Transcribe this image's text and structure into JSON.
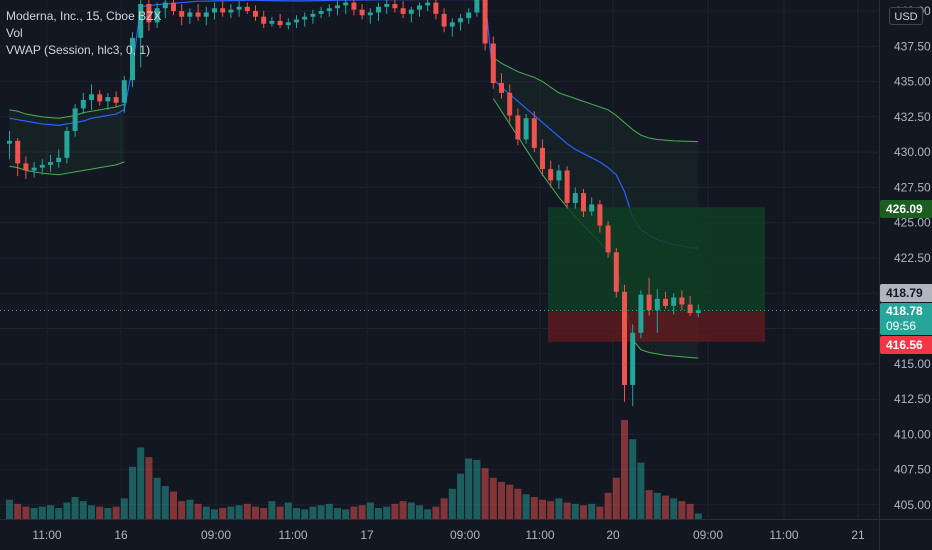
{
  "legend": {
    "title": "Moderna, Inc., 15, Cboe BZX",
    "volume": "Vol",
    "vwap": "VWAP (Session, hlc3, 0, 1)"
  },
  "currency_button": "USD",
  "price_tags": {
    "target": "426.09",
    "last": "418.79",
    "current": "418.78",
    "countdown": "09:56",
    "stop": "416.56"
  },
  "colors": {
    "background": "#131722",
    "up": "#26a69a",
    "down": "#ef5350",
    "vwap": "#2962ff",
    "band": "#4caf50",
    "target_zone": "#0f3d24",
    "stop_zone": "#5c1a1f"
  },
  "chart_data": {
    "type": "candlestick",
    "y_ticks": [
      "405.00",
      "407.50",
      "410.00",
      "412.50",
      "415.00",
      "417.50",
      "420.00",
      "422.50",
      "425.00",
      "427.50",
      "430.00",
      "432.50",
      "435.00",
      "437.50",
      "440.00"
    ],
    "ylim": [
      404,
      440.5
    ],
    "x_ticks": [
      "11:00",
      "16",
      "09:00",
      "11:00",
      "17",
      "09:00",
      "11:00",
      "20",
      "09:00",
      "11:00",
      "21"
    ],
    "candles": [
      [
        430.6,
        431.5,
        429.5,
        430.8
      ],
      [
        430.8,
        431.0,
        428.3,
        429.2
      ],
      [
        429.2,
        429.7,
        428.1,
        428.7
      ],
      [
        428.7,
        429.3,
        428.2,
        428.9
      ],
      [
        428.9,
        429.5,
        428.4,
        429.1
      ],
      [
        429.1,
        429.8,
        428.6,
        429.3
      ],
      [
        429.3,
        430.2,
        428.9,
        429.6
      ],
      [
        429.6,
        431.8,
        429.2,
        431.5
      ],
      [
        431.5,
        433.4,
        431.1,
        433.1
      ],
      [
        433.1,
        434.2,
        432.7,
        433.7
      ],
      [
        433.7,
        434.8,
        433.0,
        434.1
      ],
      [
        434.1,
        434.4,
        433.3,
        433.6
      ],
      [
        433.6,
        434.2,
        433.0,
        433.9
      ],
      [
        433.9,
        434.3,
        433.2,
        433.5
      ],
      [
        433.5,
        435.4,
        432.8,
        435.1
      ],
      [
        435.1,
        438.5,
        434.6,
        438.1
      ],
      [
        438.1,
        441.2,
        436.0,
        440.5
      ],
      [
        440.5,
        441.0,
        438.6,
        439.2
      ],
      [
        439.2,
        440.6,
        438.8,
        440.2
      ],
      [
        440.2,
        441.0,
        439.5,
        440.6
      ],
      [
        440.6,
        441.0,
        439.7,
        440.0
      ],
      [
        440.0,
        440.5,
        439.0,
        439.6
      ],
      [
        439.6,
        440.2,
        439.1,
        439.9
      ],
      [
        439.9,
        440.5,
        439.3,
        439.6
      ],
      [
        439.6,
        440.3,
        439.0,
        439.9
      ],
      [
        439.9,
        440.6,
        439.4,
        440.2
      ],
      [
        440.2,
        440.7,
        439.6,
        439.9
      ],
      [
        439.9,
        440.5,
        439.5,
        440.1
      ],
      [
        440.1,
        440.7,
        439.6,
        440.3
      ],
      [
        440.3,
        440.6,
        439.8,
        440.0
      ],
      [
        440.0,
        440.4,
        439.3,
        439.6
      ],
      [
        439.6,
        440.0,
        438.8,
        439.1
      ],
      [
        439.1,
        439.6,
        438.9,
        439.3
      ],
      [
        439.3,
        439.8,
        438.8,
        439.0
      ],
      [
        439.0,
        439.5,
        438.7,
        439.2
      ],
      [
        439.2,
        439.7,
        438.8,
        439.4
      ],
      [
        439.4,
        439.9,
        438.9,
        439.6
      ],
      [
        439.6,
        440.1,
        439.1,
        439.8
      ],
      [
        439.8,
        440.3,
        439.5,
        440.0
      ],
      [
        440.0,
        440.5,
        439.6,
        440.2
      ],
      [
        440.2,
        440.7,
        439.7,
        440.4
      ],
      [
        440.4,
        440.8,
        439.8,
        440.6
      ],
      [
        440.6,
        441.0,
        439.7,
        440.1
      ],
      [
        440.1,
        440.5,
        439.4,
        439.7
      ],
      [
        439.7,
        440.2,
        439.1,
        439.9
      ],
      [
        439.9,
        440.6,
        439.3,
        440.3
      ],
      [
        440.3,
        440.9,
        439.8,
        440.5
      ],
      [
        440.5,
        441.0,
        439.9,
        440.2
      ],
      [
        440.2,
        440.7,
        439.5,
        439.8
      ],
      [
        439.8,
        440.3,
        439.2,
        440.1
      ],
      [
        440.1,
        440.6,
        439.6,
        440.4
      ],
      [
        440.4,
        441.0,
        440.0,
        440.6
      ],
      [
        440.6,
        441.0,
        439.4,
        439.8
      ],
      [
        439.8,
        440.2,
        438.5,
        438.9
      ],
      [
        438.9,
        439.5,
        438.2,
        439.2
      ],
      [
        439.2,
        439.8,
        438.6,
        439.5
      ],
      [
        439.5,
        440.2,
        439.1,
        439.9
      ],
      [
        439.9,
        441.2,
        439.6,
        440.8
      ],
      [
        440.8,
        441.0,
        437.2,
        437.7
      ],
      [
        437.7,
        438.2,
        434.5,
        434.9
      ],
      [
        434.9,
        435.6,
        433.8,
        434.2
      ],
      [
        434.2,
        434.8,
        432.1,
        432.6
      ],
      [
        432.6,
        433.1,
        430.5,
        430.9
      ],
      [
        430.9,
        432.7,
        430.6,
        432.4
      ],
      [
        432.4,
        432.9,
        430.0,
        430.3
      ],
      [
        430.3,
        430.9,
        428.3,
        428.8
      ],
      [
        428.8,
        429.4,
        427.5,
        428.0
      ],
      [
        428.0,
        429.1,
        427.4,
        428.7
      ],
      [
        428.7,
        429.0,
        426.0,
        426.4
      ],
      [
        426.4,
        427.5,
        426.0,
        427.1
      ],
      [
        427.1,
        427.4,
        425.4,
        425.8
      ],
      [
        425.8,
        426.8,
        425.5,
        426.3
      ],
      [
        426.3,
        426.6,
        424.3,
        424.8
      ],
      [
        424.8,
        425.1,
        422.5,
        422.9
      ],
      [
        422.9,
        423.2,
        419.7,
        420.1
      ],
      [
        420.1,
        420.6,
        412.3,
        413.5
      ],
      [
        413.5,
        417.8,
        412.0,
        417.2
      ],
      [
        417.2,
        420.2,
        416.8,
        419.9
      ],
      [
        419.9,
        421.1,
        418.4,
        418.8
      ],
      [
        418.8,
        420.3,
        417.2,
        419.6
      ],
      [
        419.6,
        420.1,
        418.9,
        419.1
      ],
      [
        419.1,
        420.0,
        418.5,
        419.7
      ],
      [
        419.7,
        420.2,
        418.8,
        419.2
      ],
      [
        419.2,
        419.8,
        418.4,
        418.6
      ],
      [
        418.6,
        419.2,
        418.3,
        418.79
      ]
    ],
    "volumes": [
      14,
      11,
      9,
      8,
      9,
      10,
      8,
      12,
      16,
      13,
      10,
      9,
      8,
      9,
      15,
      38,
      52,
      45,
      30,
      24,
      20,
      13,
      14,
      11,
      9,
      7,
      8,
      9,
      10,
      11,
      9,
      8,
      13,
      9,
      12,
      8,
      7,
      9,
      10,
      11,
      8,
      7,
      9,
      10,
      12,
      8,
      9,
      11,
      13,
      12,
      10,
      7,
      9,
      15,
      22,
      33,
      44,
      43,
      37,
      30,
      27,
      25,
      22,
      18,
      16,
      14,
      13,
      15,
      12,
      11,
      10,
      11,
      9,
      19,
      30,
      72,
      58,
      41,
      21,
      19,
      17,
      15,
      13,
      11,
      4
    ],
    "vwap": [
      432.4,
      432.3,
      432.2,
      432.1,
      432.0,
      431.95,
      431.9,
      432.0,
      432.1,
      432.2,
      432.4,
      432.5,
      432.6,
      432.7,
      433.0,
      436.0,
      440.3,
      440.4,
      440.45,
      440.5,
      440.55,
      440.6,
      440.65,
      440.7,
      440.7,
      440.72,
      440.73,
      440.74,
      440.75,
      440.76,
      440.76,
      440.75,
      440.74,
      440.73,
      440.72,
      440.72,
      440.72,
      440.73,
      440.74,
      440.75,
      440.76,
      440.77,
      440.78,
      440.78,
      440.79,
      440.8,
      440.8,
      440.81,
      440.81,
      440.81,
      440.82,
      440.82,
      440.82,
      440.82,
      440.82,
      440.82,
      440.82,
      440.82,
      440.82,
      435.2,
      434.6,
      434.1,
      433.6,
      433.1,
      432.6,
      432.1,
      431.6,
      431.1,
      430.6,
      430.2,
      429.9,
      429.6,
      429.3,
      428.9,
      428.4,
      427.2,
      425.4,
      424.5,
      424.1,
      423.8,
      423.6,
      423.45,
      423.35,
      423.25,
      423.2
    ],
    "vwap_upper": [
      null,
      null,
      null,
      null,
      null,
      null,
      null,
      null,
      null,
      null,
      null,
      null,
      null,
      null,
      null,
      null,
      null,
      null,
      null,
      null,
      null,
      null,
      null,
      null,
      null,
      null,
      null,
      null,
      null,
      null,
      null,
      null,
      null,
      null,
      null,
      null,
      null,
      null,
      null,
      null,
      null,
      null,
      null,
      null,
      null,
      null,
      null,
      null,
      null,
      null,
      null,
      null,
      null,
      null,
      null,
      null,
      null,
      null,
      null,
      436.7,
      436.3,
      436.0,
      435.7,
      435.5,
      435.3,
      435.0,
      434.6,
      434.2,
      434.0,
      433.8,
      433.6,
      433.4,
      433.2,
      433.0,
      432.6,
      432.1,
      431.6,
      431.2,
      431.0,
      430.9,
      430.85,
      430.8,
      430.78,
      430.76,
      430.75
    ],
    "vwap_lower": [
      null,
      null,
      null,
      null,
      null,
      null,
      null,
      null,
      null,
      null,
      null,
      null,
      null,
      null,
      null,
      null,
      null,
      null,
      null,
      null,
      null,
      null,
      null,
      null,
      null,
      null,
      null,
      null,
      null,
      null,
      null,
      null,
      null,
      null,
      null,
      null,
      null,
      null,
      null,
      null,
      null,
      null,
      null,
      null,
      null,
      null,
      null,
      null,
      null,
      null,
      null,
      null,
      null,
      null,
      null,
      null,
      null,
      null,
      null,
      433.8,
      432.9,
      432.0,
      431.1,
      430.2,
      429.3,
      428.4,
      427.6,
      426.8,
      426.1,
      425.4,
      424.8,
      424.2,
      423.6,
      423.0,
      422.0,
      419.5,
      416.7,
      416.0,
      415.8,
      415.7,
      415.6,
      415.55,
      415.5,
      415.45,
      415.4
    ],
    "position": {
      "entry": 418.7,
      "target": 426.09,
      "stop": 416.56,
      "start_index": 85,
      "end_index": 122
    }
  }
}
